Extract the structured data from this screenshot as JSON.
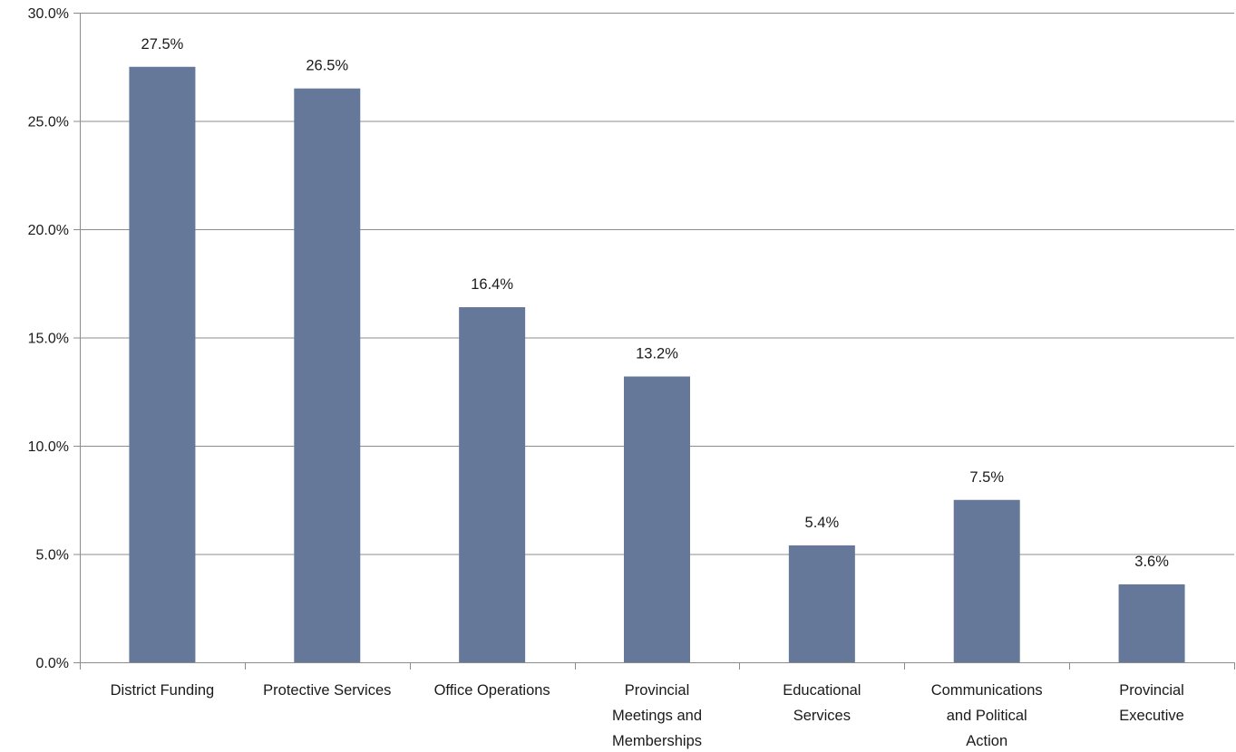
{
  "chart_data": {
    "type": "bar",
    "title": "",
    "xlabel": "",
    "ylabel": "",
    "ylim": [
      0,
      30
    ],
    "yticks": [
      0,
      5,
      10,
      15,
      20,
      25,
      30
    ],
    "ytick_labels": [
      "0.0%",
      "5.0%",
      "10.0%",
      "15.0%",
      "20.0%",
      "25.0%",
      "30.0%"
    ],
    "grid": true,
    "legend": "none",
    "categories": [
      "District Funding",
      "Protective Services",
      "Office Operations",
      "Provincial Meetings and Memberships",
      "Educational Services",
      "Communications and Political Action",
      "Provincial Executive"
    ],
    "category_lines": [
      [
        "District Funding"
      ],
      [
        "Protective Services"
      ],
      [
        "Office Operations"
      ],
      [
        "Provincial",
        "Meetings and",
        "Memberships"
      ],
      [
        "Educational",
        "Services"
      ],
      [
        "Communications",
        "and Political",
        "Action"
      ],
      [
        "Provincial",
        "Executive"
      ]
    ],
    "values": [
      27.5,
      26.5,
      16.4,
      13.2,
      5.4,
      7.5,
      3.6
    ],
    "data_labels": [
      "27.5%",
      "26.5%",
      "16.4%",
      "13.2%",
      "5.4%",
      "7.5%",
      "3.6%"
    ],
    "colors": {
      "bar": "#66789a",
      "gridline": "#8c8c8c",
      "axis": "#8c8c8c"
    }
  }
}
